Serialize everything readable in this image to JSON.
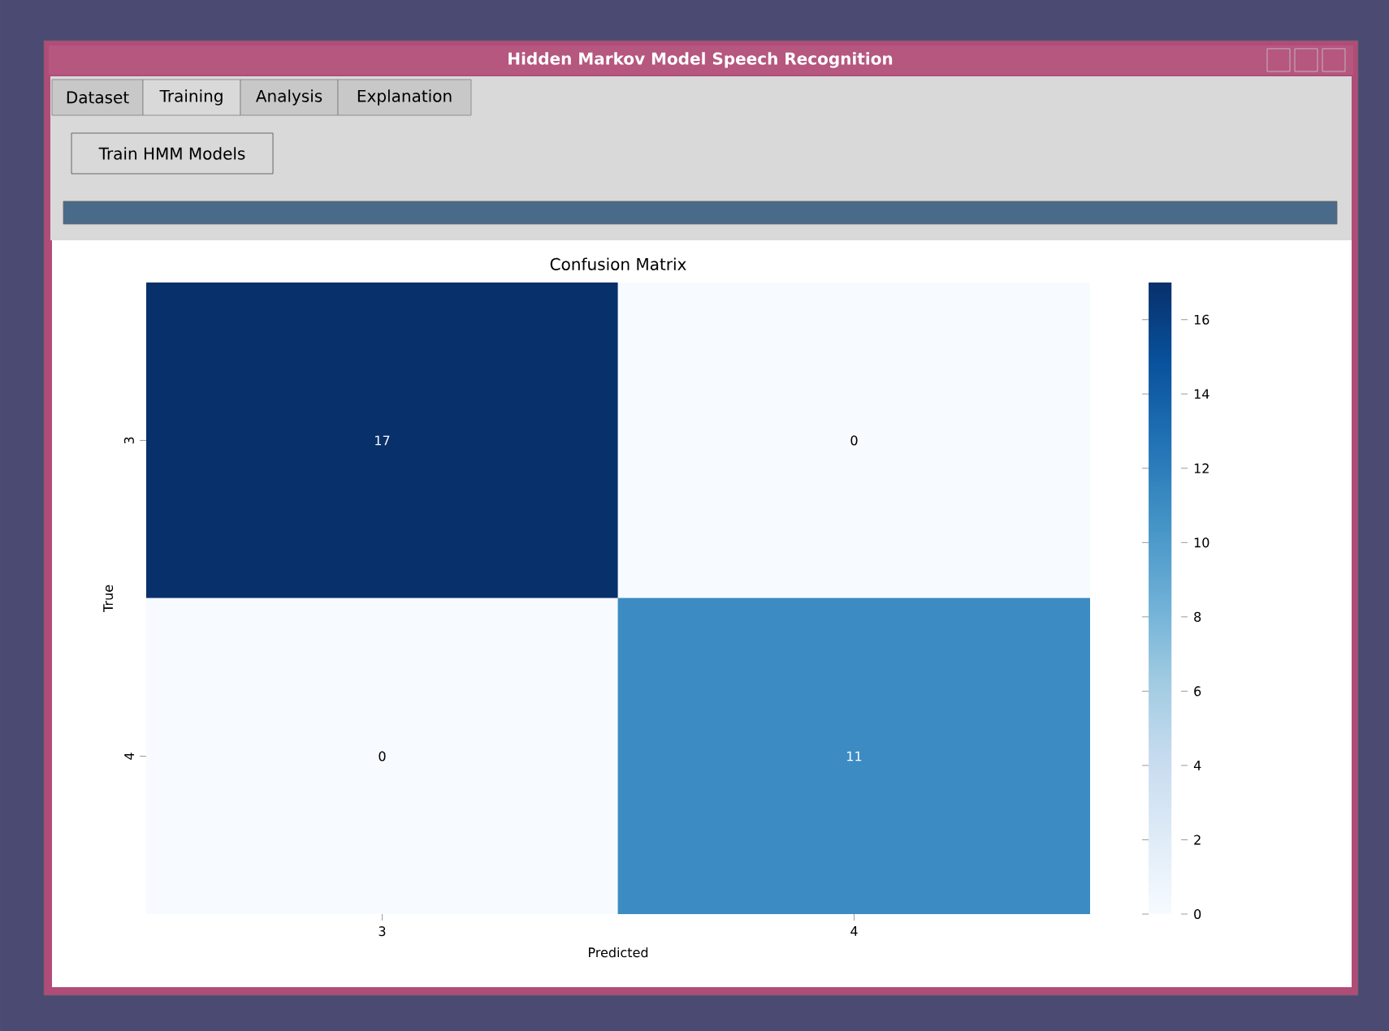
{
  "chart_data": {
    "type": "heatmap",
    "title": "Confusion Matrix",
    "xlabel": "Predicted",
    "ylabel": "True",
    "categories": [
      "3",
      "4"
    ],
    "y_categories": [
      "3",
      "4"
    ],
    "cells": [
      [
        17,
        0
      ],
      [
        0,
        11
      ]
    ],
    "data_labels": true,
    "clim": [
      0,
      17
    ],
    "cticks": [
      0,
      2,
      4,
      6,
      8,
      10,
      12,
      14,
      16
    ],
    "annotations": [
      "Hidden Markov Model Speech Recognition",
      "Dataset",
      "Training",
      "Analysis",
      "Explanation",
      "Train HMM Models"
    ]
  }
}
